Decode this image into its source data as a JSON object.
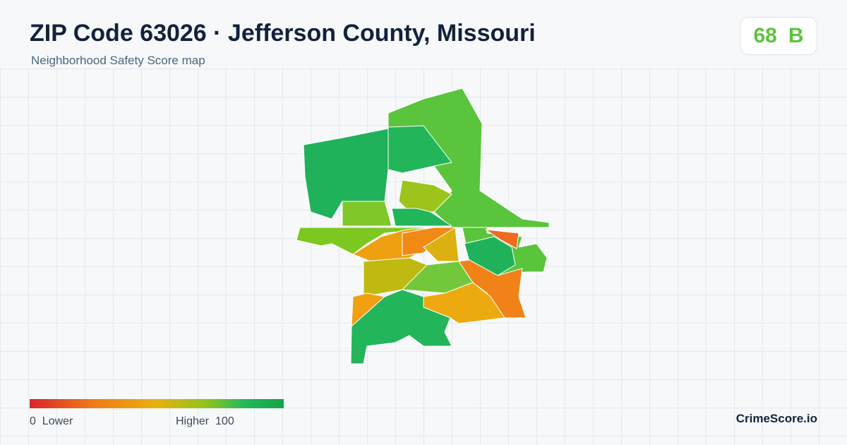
{
  "header": {
    "title": "ZIP Code 63026 · Jefferson County, Missouri",
    "subtitle": "Neighborhood Safety Score map"
  },
  "score": {
    "value": 68,
    "grade": "B"
  },
  "legend": {
    "min": 0,
    "min_label": "Lower",
    "max_label": "Higher",
    "max": 100
  },
  "brand": "CrimeScore.io"
}
